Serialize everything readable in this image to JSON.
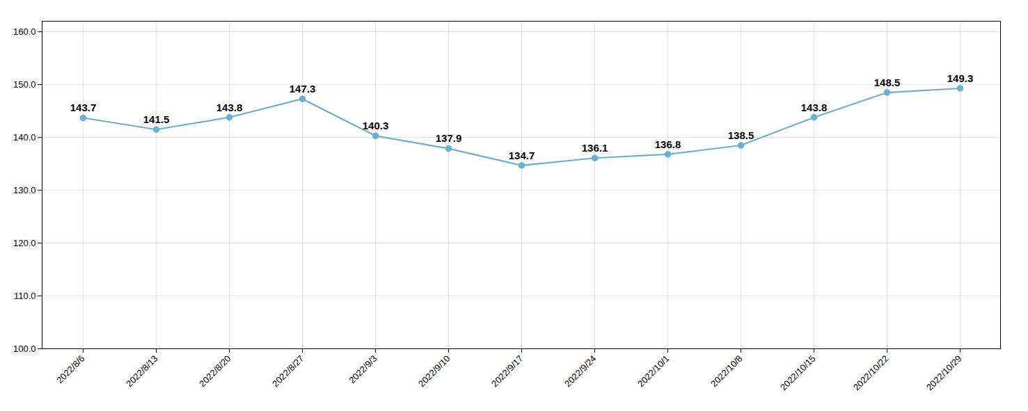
{
  "chart_data": {
    "type": "line",
    "categories": [
      "2022/8/6",
      "2022/8/13",
      "2022/8/20",
      "2022/8/27",
      "2022/9/3",
      "2022/9/10",
      "2022/9/17",
      "2022/9/24",
      "2022/10/1",
      "2022/10/8",
      "2022/10/15",
      "2022/10/22",
      "2022/10/29"
    ],
    "values": [
      143.7,
      141.5,
      143.8,
      147.3,
      140.3,
      137.9,
      134.7,
      136.1,
      136.8,
      138.5,
      143.8,
      148.5,
      149.3
    ],
    "color": "#6aafd6",
    "marker": "circle",
    "line_style": "solid",
    "ylim": [
      100.0,
      162.0
    ],
    "yticks": [
      {
        "value": 100.0,
        "label": "100.0"
      },
      {
        "value": 110.0,
        "label": "110.0"
      },
      {
        "value": 120.0,
        "label": "120.0"
      },
      {
        "value": 130.0,
        "label": "130.0"
      },
      {
        "value": 140.0,
        "label": "140.0"
      },
      {
        "value": 150.0,
        "label": "150.0"
      },
      {
        "value": 160.0,
        "label": "160.0"
      }
    ],
    "grid": true,
    "data_labels": true
  }
}
